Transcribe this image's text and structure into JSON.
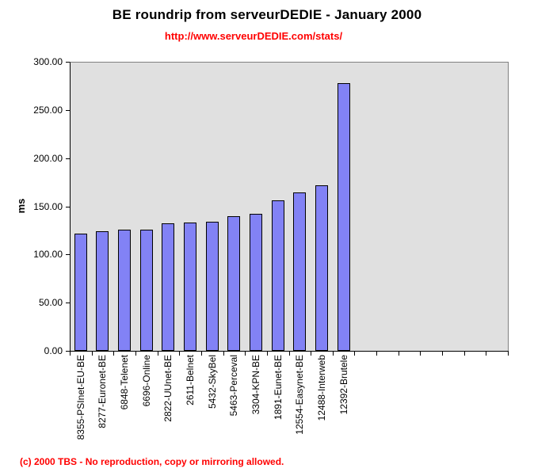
{
  "page": {
    "background": "#FFFFFF"
  },
  "header": {
    "title": "BE roundrip from serveurDEDIE - January 2000",
    "stats_url": "http://www.serveurDEDIE.com/stats/"
  },
  "footer": {
    "copyright": "(c) 2000 TBS - No reproduction, copy or mirroring allowed."
  },
  "colors": {
    "title_text": "#000000",
    "accent_red": "#FF0000",
    "bar_fill": "#8282F5",
    "bar_border": "#000000",
    "plot_background": "#E0E0E0",
    "plot_border_gray": "#808080",
    "axis_black": "#000000"
  },
  "chart_data": {
    "type": "bar",
    "title": "BE roundrip from serveurDEDIE - January 2000",
    "subtitle": "http://www.serveurDEDIE.com/stats/",
    "ylabel": "ms",
    "xlabel": "",
    "unit": "ms",
    "ylim": [
      0,
      300
    ],
    "ytick_step": 50,
    "ytick_decimals": 2,
    "grid": false,
    "legend": false,
    "total_category_slots": 20,
    "categories": [
      "8355-PSInet-EU-BE",
      "8277-Euronet-BE",
      "6848-Telenet",
      "6696-Online",
      "2822-UUnet-BE",
      "2611-Belnet",
      "5432-SkyBel",
      "5463-Perceval",
      "3304-KPN-BE",
      "1891-Eunet-BE",
      "12554-Easynet-BE",
      "12488-Interweb",
      "12392-Brutele"
    ],
    "values": [
      122,
      124,
      126,
      126,
      132,
      133,
      134,
      140,
      142,
      156,
      164,
      172,
      278
    ]
  }
}
